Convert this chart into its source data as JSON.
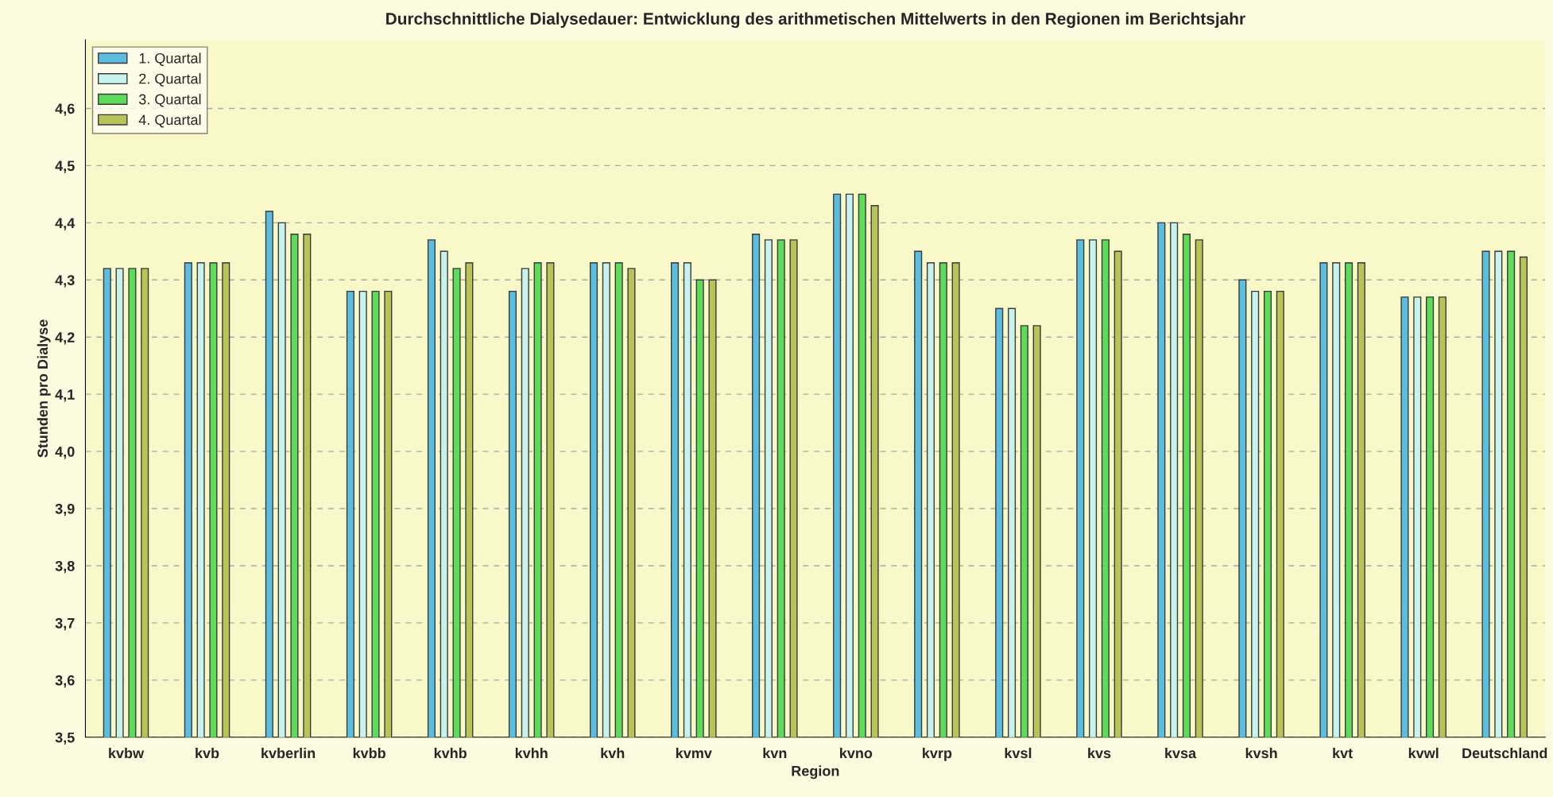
{
  "chart_data": {
    "type": "bar",
    "title": "Durchschnittliche Dialysedauer: Entwicklung des arithmetischen Mittelwerts in den Regionen im Berichtsjahr",
    "xlabel": "Region",
    "ylabel": "Stunden pro Dialyse",
    "categories": [
      "kvbw",
      "kvb",
      "kvberlin",
      "kvbb",
      "kvhb",
      "kvhh",
      "kvh",
      "kvmv",
      "kvn",
      "kvno",
      "kvrp",
      "kvsl",
      "kvs",
      "kvsa",
      "kvsh",
      "kvt",
      "kvwl",
      "Deutschland"
    ],
    "series": [
      {
        "name": "1. Quartal",
        "color": "#5bbde0",
        "values": [
          4.32,
          4.33,
          4.42,
          4.28,
          4.37,
          4.28,
          4.33,
          4.33,
          4.38,
          4.45,
          4.35,
          4.25,
          4.37,
          4.4,
          4.3,
          4.33,
          4.27,
          4.35
        ]
      },
      {
        "name": "2. Quartal",
        "color": "#c8f2ec",
        "values": [
          4.32,
          4.33,
          4.4,
          4.28,
          4.35,
          4.32,
          4.33,
          4.33,
          4.37,
          4.45,
          4.33,
          4.25,
          4.37,
          4.4,
          4.28,
          4.33,
          4.27,
          4.35
        ]
      },
      {
        "name": "3. Quartal",
        "color": "#5ddc5a",
        "values": [
          4.32,
          4.33,
          4.38,
          4.28,
          4.32,
          4.33,
          4.33,
          4.3,
          4.37,
          4.45,
          4.33,
          4.22,
          4.37,
          4.38,
          4.28,
          4.33,
          4.27,
          4.35
        ]
      },
      {
        "name": "4. Quartal",
        "color": "#b8c458",
        "values": [
          4.32,
          4.33,
          4.38,
          4.28,
          4.33,
          4.33,
          4.32,
          4.3,
          4.37,
          4.43,
          4.33,
          4.22,
          4.35,
          4.37,
          4.28,
          4.33,
          4.27,
          4.34
        ]
      }
    ],
    "ylim": [
      3.5,
      4.72
    ],
    "yticks": [
      {
        "value": 3.5,
        "label": "3,5"
      },
      {
        "value": 3.6,
        "label": "3,6"
      },
      {
        "value": 3.7,
        "label": "3,7"
      },
      {
        "value": 3.8,
        "label": "3,8"
      },
      {
        "value": 3.9,
        "label": "3,9"
      },
      {
        "value": 4.0,
        "label": "4,0"
      },
      {
        "value": 4.1,
        "label": "4,1"
      },
      {
        "value": 4.2,
        "label": "4,2"
      },
      {
        "value": 4.3,
        "label": "4,3"
      },
      {
        "value": 4.4,
        "label": "4,4"
      },
      {
        "value": 4.5,
        "label": "4,5"
      },
      {
        "value": 4.6,
        "label": "4,6"
      }
    ],
    "grid": "y",
    "legend": "top left"
  }
}
